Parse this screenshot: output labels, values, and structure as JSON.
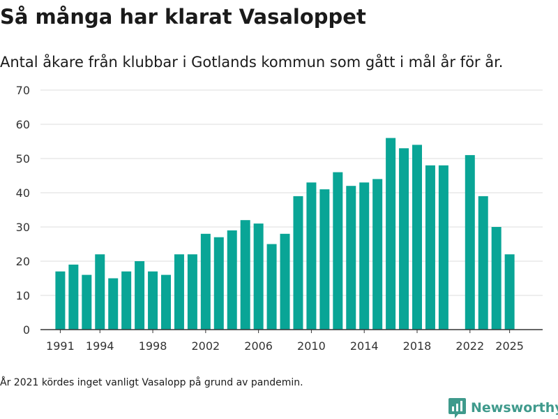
{
  "header": {
    "title": "Så många har klarat Vasaloppet",
    "subtitle": "Antal åkare från klubbar i Gotlands kommun som gått i mål år för år."
  },
  "footnote": "År 2021 kördes inget vanligt Vasalopp på grund av pandemin.",
  "brand": {
    "name": "Newsworthy",
    "icon": "newsworthy-logo-icon",
    "color": "#3f9a8c"
  },
  "colors": {
    "bar": "#09a596",
    "grid": "#dcdcdc",
    "axis": "#333333",
    "text": "#333333"
  },
  "chart_data": {
    "type": "bar",
    "x": [
      1991,
      1992,
      1993,
      1994,
      1995,
      1996,
      1997,
      1998,
      1999,
      2000,
      2001,
      2002,
      2003,
      2004,
      2005,
      2006,
      2007,
      2008,
      2009,
      2010,
      2011,
      2012,
      2013,
      2014,
      2015,
      2016,
      2017,
      2018,
      2019,
      2020,
      2022,
      2023,
      2024,
      2025
    ],
    "values": [
      17,
      19,
      16,
      22,
      15,
      17,
      20,
      17,
      16,
      22,
      22,
      28,
      27,
      29,
      32,
      31,
      25,
      28,
      39,
      43,
      41,
      46,
      42,
      43,
      44,
      56,
      53,
      54,
      48,
      48,
      51,
      39,
      30,
      22
    ],
    "xlim": [
      1989.5,
      2027.5
    ],
    "ylim": [
      0,
      70
    ],
    "yticks": [
      0,
      10,
      20,
      30,
      40,
      50,
      60,
      70
    ],
    "xticks": [
      1991,
      1994,
      1998,
      2002,
      2006,
      2010,
      2014,
      2018,
      2022,
      2025
    ],
    "xlabel": "",
    "ylabel": "",
    "grid": true,
    "legend": "none"
  }
}
